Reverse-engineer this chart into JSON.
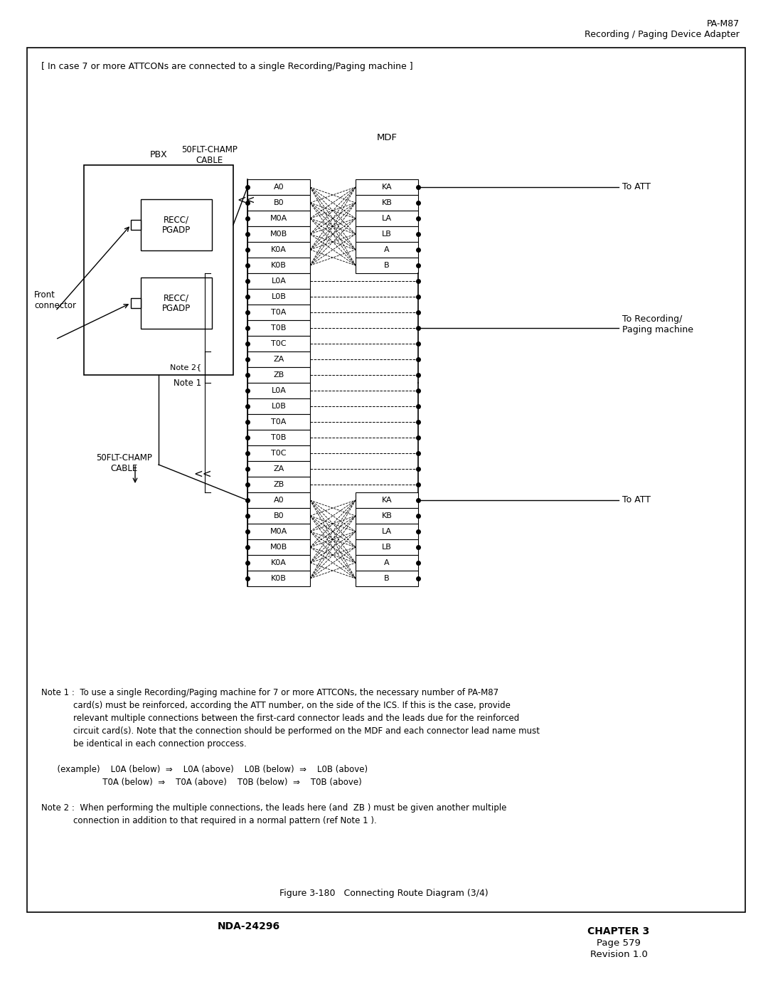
{
  "title_right_line1": "PA-M87",
  "title_right_line2": "Recording / Paging Device Adapter",
  "box_note": "[ In case 7 or more ATTCONs are connected to a single Recording/Paging machine ]",
  "pbx_label": "PBX",
  "cable_label_top": "50FLT-CHAMP\nCABLE",
  "mdf_label": "MDF",
  "front_connector_label": "Front\nconnector",
  "cable_label_bottom": "50FLT-CHAMP\nCABLE",
  "note1_label": "Note 1",
  "note2_label": "Note 2",
  "to_att_label": "To ATT",
  "to_recording_label": "To Recording/\nPaging machine",
  "recc_pgadp_label": "RECC/\nPGADP",
  "left_col_top": [
    "A0",
    "B0",
    "M0A",
    "M0B",
    "K0A",
    "K0B"
  ],
  "right_col_top": [
    "KA",
    "KB",
    "LA",
    "LB",
    "A",
    "B"
  ],
  "mid_rows1": [
    "L0A",
    "L0B",
    "T0A",
    "T0B",
    "T0C",
    "ZA",
    "ZB"
  ],
  "mid_rows2": [
    "L0A",
    "L0B",
    "T0A",
    "T0B",
    "T0C",
    "ZA",
    "ZB"
  ],
  "left_col_bot": [
    "A0",
    "B0",
    "M0A",
    "M0B",
    "K0A",
    "K0B"
  ],
  "right_col_bot": [
    "KA",
    "KB",
    "LA",
    "LB",
    "A",
    "B"
  ],
  "figure_caption": "Figure 3-180   Connecting Route Diagram (3/4)",
  "footer_left": "NDA-24296",
  "footer_right_line1": "CHAPTER 3",
  "footer_right_line2": "Page 579",
  "footer_right_line3": "Revision 1.0",
  "note1_line1": "Note 1 :  To use a single Recording/Paging machine for 7 or more ATTCONs, the necessary number of PA-M87",
  "note1_line2": "            card(s) must be reinforced, according the ATT number, on the side of the ICS. If this is the case, provide",
  "note1_line3": "            relevant multiple connections between the first-card connector leads and the leads due for the reinforced",
  "note1_line4": "            circuit card(s). Note that the connection should be performed on the MDF and each connector lead name must",
  "note1_line5": "            be identical in each connection proccess.",
  "example_line1": "      (example)    L0A (below)  ⇒    L0A (above)    L0B (below)  ⇒    L0B (above)",
  "example_line2": "                       T0A (below)  ⇒    T0A (above)    T0B (below)  ⇒    T0B (above)",
  "note2_line1": "Note 2 :  When performing the multiple connections, the leads here (and  ZB ) must be given another multiple",
  "note2_line2": "            connection in addition to that required in a normal pattern (ref Note 1 )."
}
